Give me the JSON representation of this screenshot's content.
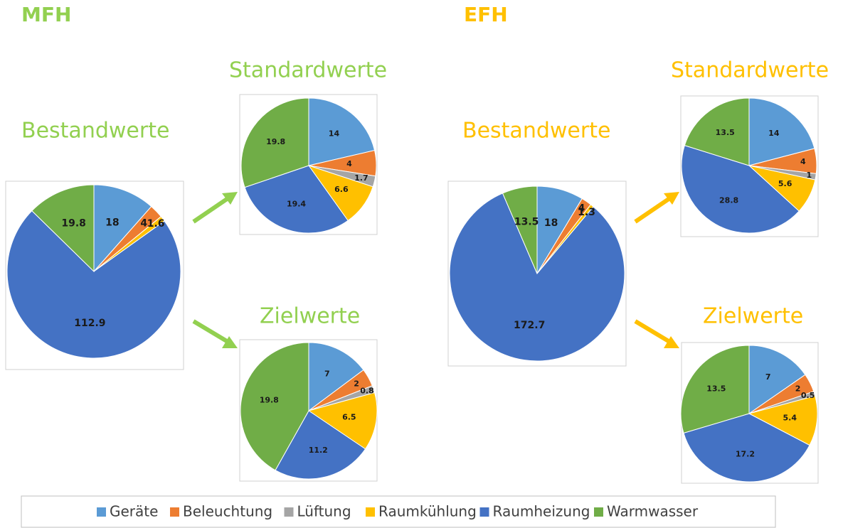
{
  "headings": [
    {
      "text": "MFH",
      "color": "#92d050"
    },
    {
      "text": "EFH",
      "color": "#ffc000"
    }
  ],
  "legend": {
    "categories": [
      "Geräte",
      "Beleuchtung",
      "Lüftung",
      "Raumkühlung",
      "Raumheizung",
      "Warmwasser"
    ],
    "colors": [
      "#5b9bd5",
      "#ed7d31",
      "#a5a5a5",
      "#ffc000",
      "#4472c4",
      "#70ad47"
    ]
  },
  "chart_data": [
    {
      "type": "pie",
      "title": "Bestandwerte",
      "title_color": "#92d050",
      "values": [
        18,
        4,
        null,
        1.6,
        112.9,
        19.8
      ]
    },
    {
      "type": "pie",
      "title": "Standardwerte",
      "title_color": "#92d050",
      "values": [
        14,
        4,
        1.7,
        6.6,
        19.4,
        19.8
      ]
    },
    {
      "type": "pie",
      "title": "Zielwerte",
      "title_color": "#92d050",
      "values": [
        7,
        2,
        0.8,
        6.5,
        11.2,
        19.8
      ]
    },
    {
      "type": "pie",
      "title": "Bestandwerte",
      "title_color": "#ffc000",
      "values": [
        18,
        4,
        null,
        1.3,
        172.7,
        13.5
      ]
    },
    {
      "type": "pie",
      "title": "Standardwerte",
      "title_color": "#ffc000",
      "values": [
        14,
        4,
        1,
        5.6,
        28.8,
        13.5
      ]
    },
    {
      "type": "pie",
      "title": "Zielwerte",
      "title_color": "#ffc000",
      "values": [
        7,
        2,
        0.5,
        5.4,
        17.2,
        13.5
      ]
    }
  ]
}
